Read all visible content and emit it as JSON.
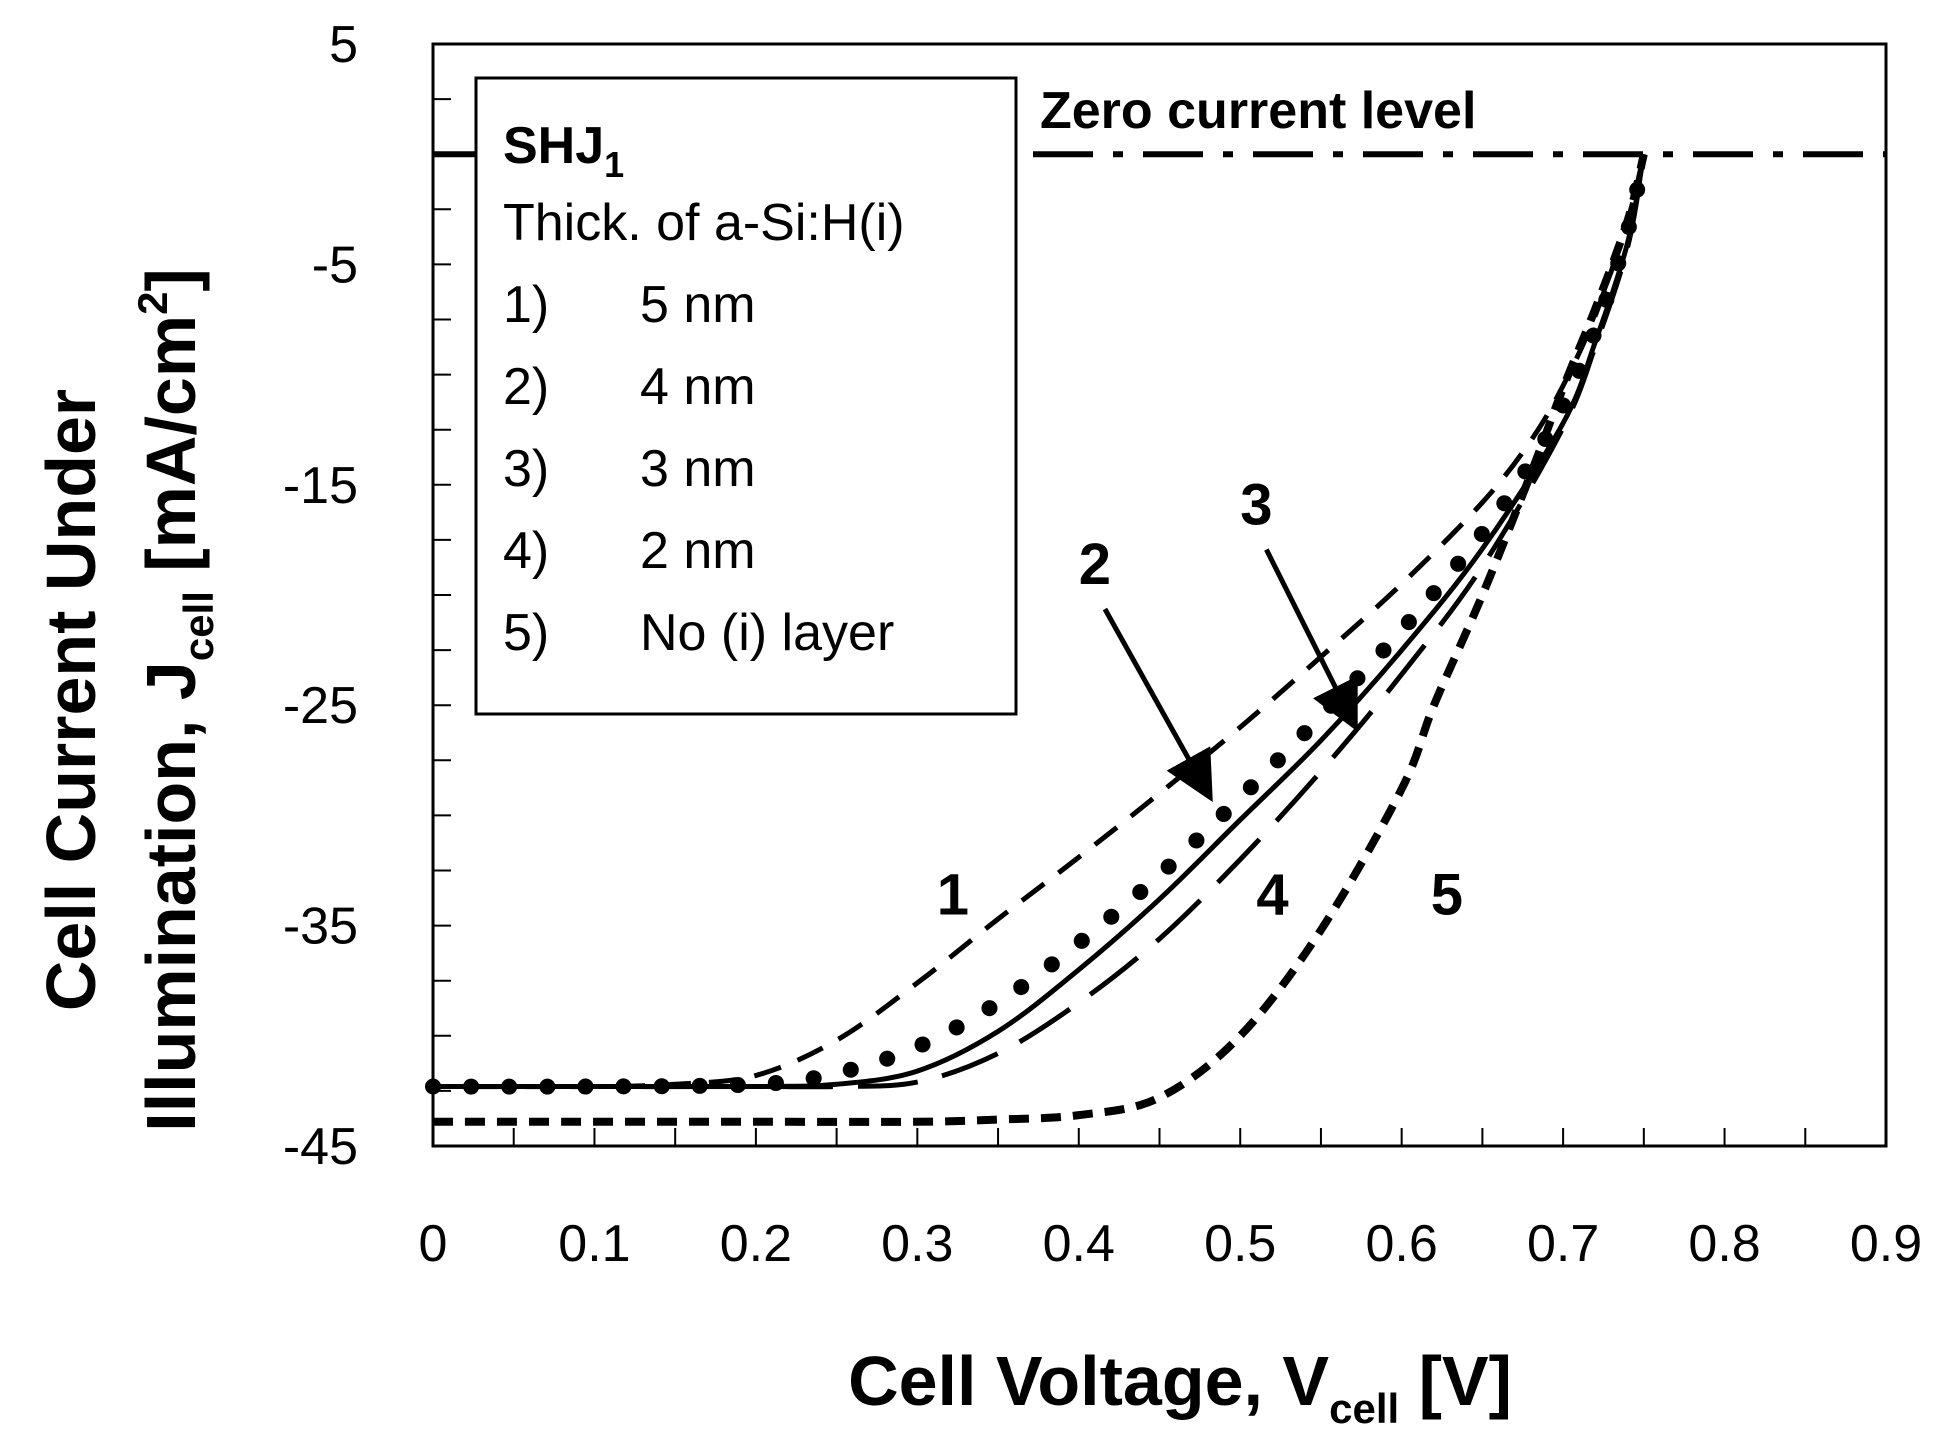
{
  "chart_data": {
    "type": "line",
    "xlabel": "Cell Voltage, V",
    "xlabel_sub": "cell",
    "xlabel_unit": " [V]",
    "ylabel_line1": "Cell Current Under",
    "ylabel_line2_prefix": "Illumination, J",
    "ylabel_line2_sub": "cell",
    "ylabel_line2_unit": " [mA/cm",
    "ylabel_line2_sup": "2",
    "ylabel_line2_end": "]",
    "xlim": [
      0,
      0.9
    ],
    "ylim": [
      -45,
      5
    ],
    "x_ticks": [
      0,
      0.1,
      0.2,
      0.3,
      0.4,
      0.5,
      0.6,
      0.7,
      0.8,
      0.9
    ],
    "x_tick_labels": [
      "0",
      "0.1",
      "0.2",
      "0.3",
      "0.4",
      "0.5",
      "0.6",
      "0.7",
      "0.8",
      "0.9"
    ],
    "y_ticks": [
      5,
      -5,
      -15,
      -25,
      -35,
      -45
    ],
    "y_tick_labels": [
      "5",
      "-5",
      "-15",
      "-25",
      "-35",
      "-45"
    ],
    "zero_line_label": "Zero current level",
    "legend": {
      "title_main": "SHJ",
      "title_sub": "1",
      "subtitle": "Thick.  of a-Si:H(i)",
      "entries": [
        {
          "num": "1)",
          "label": "5 nm"
        },
        {
          "num": "2)",
          "label": "4 nm"
        },
        {
          "num": "3)",
          "label": "3 nm"
        },
        {
          "num": "4)",
          "label": "2 nm"
        },
        {
          "num": "5)",
          "label": "No (i) layer"
        }
      ]
    },
    "series": [
      {
        "name": "1",
        "style": "dash-short",
        "x": [
          0,
          0.1,
          0.15,
          0.2,
          0.25,
          0.3,
          0.35,
          0.4,
          0.45,
          0.5,
          0.55,
          0.6,
          0.65,
          0.68,
          0.7,
          0.72,
          0.74,
          0.75
        ],
        "y": [
          -42.3,
          -42.3,
          -42.2,
          -41.8,
          -40.2,
          -37.6,
          -34.7,
          -31.9,
          -29.0,
          -26.0,
          -22.8,
          -19.5,
          -15.8,
          -13.0,
          -10.5,
          -7.3,
          -3.0,
          0
        ]
      },
      {
        "name": "2",
        "style": "dots",
        "x": [
          0,
          0.1,
          0.2,
          0.25,
          0.3,
          0.35,
          0.4,
          0.45,
          0.5,
          0.55,
          0.6,
          0.65,
          0.68,
          0.7,
          0.72,
          0.74,
          0.75
        ],
        "y": [
          -42.3,
          -42.3,
          -42.2,
          -41.7,
          -40.5,
          -38.5,
          -35.8,
          -32.7,
          -29.2,
          -25.5,
          -21.6,
          -17.2,
          -14.0,
          -11.4,
          -8.0,
          -3.5,
          0
        ]
      },
      {
        "name": "3",
        "style": "solid",
        "x": [
          0,
          0.1,
          0.2,
          0.25,
          0.3,
          0.35,
          0.4,
          0.45,
          0.5,
          0.55,
          0.6,
          0.65,
          0.7,
          0.72,
          0.74,
          0.75
        ],
        "y": [
          -42.3,
          -42.3,
          -42.3,
          -42.2,
          -41.6,
          -39.8,
          -37.0,
          -33.8,
          -30.2,
          -26.6,
          -22.5,
          -17.9,
          -12.2,
          -8.5,
          -4.0,
          0
        ]
      },
      {
        "name": "4",
        "style": "dash-long",
        "x": [
          0,
          0.1,
          0.2,
          0.25,
          0.3,
          0.35,
          0.4,
          0.45,
          0.5,
          0.55,
          0.6,
          0.65,
          0.7,
          0.72,
          0.74,
          0.75
        ],
        "y": [
          -42.3,
          -42.3,
          -42.3,
          -42.3,
          -42.1,
          -40.8,
          -38.5,
          -35.6,
          -32.0,
          -28.0,
          -23.6,
          -18.7,
          -12.4,
          -8.7,
          -4.2,
          0
        ]
      },
      {
        "name": "5",
        "style": "dash-medium",
        "x": [
          0,
          0.1,
          0.2,
          0.3,
          0.35,
          0.4,
          0.45,
          0.5,
          0.55,
          0.6,
          0.62,
          0.65,
          0.68,
          0.7,
          0.72,
          0.74,
          0.75
        ],
        "y": [
          -43.9,
          -43.9,
          -43.9,
          -43.9,
          -43.8,
          -43.6,
          -42.8,
          -40.0,
          -35.2,
          -28.8,
          -25.0,
          -20.0,
          -14.5,
          -10.6,
          -7.0,
          -3.0,
          0
        ]
      }
    ],
    "callouts": [
      {
        "label": "1",
        "x": 0.322,
        "y": -34.5
      },
      {
        "label": "2",
        "x": 0.41,
        "y": -19.5,
        "arrow_to": [
          0.48,
          -29.0
        ]
      },
      {
        "label": "3",
        "x": 0.51,
        "y": -16.8,
        "arrow_to": [
          0.57,
          -25.8
        ]
      },
      {
        "label": "4",
        "x": 0.52,
        "y": -34.5
      },
      {
        "label": "5",
        "x": 0.628,
        "y": -34.5
      }
    ]
  }
}
